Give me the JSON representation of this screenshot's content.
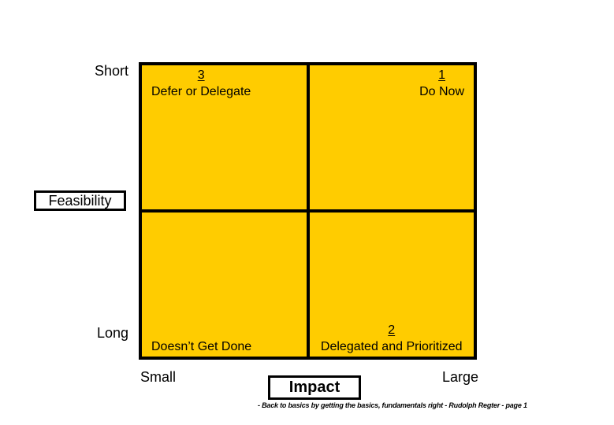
{
  "matrix": {
    "fill_color": "#FFCC00",
    "line_color": "#000000",
    "quadrants": {
      "top_left": {
        "number": "3",
        "label": "Defer or Delegate"
      },
      "top_right": {
        "number": "1",
        "label": "Do Now"
      },
      "bottom_left": {
        "label": "Doesn’t Get Done"
      },
      "bottom_right": {
        "number": "2",
        "label": "Delegated and Prioritized"
      }
    }
  },
  "axes": {
    "y": {
      "title": "Feasibility",
      "top_label": "Short",
      "bottom_label": "Long"
    },
    "x": {
      "title": "Impact",
      "left_label": "Small",
      "right_label": "Large"
    }
  },
  "footer": {
    "text": "- Back to basics by getting the basics, fundamentals right - Rudolph Regter - page 1"
  }
}
